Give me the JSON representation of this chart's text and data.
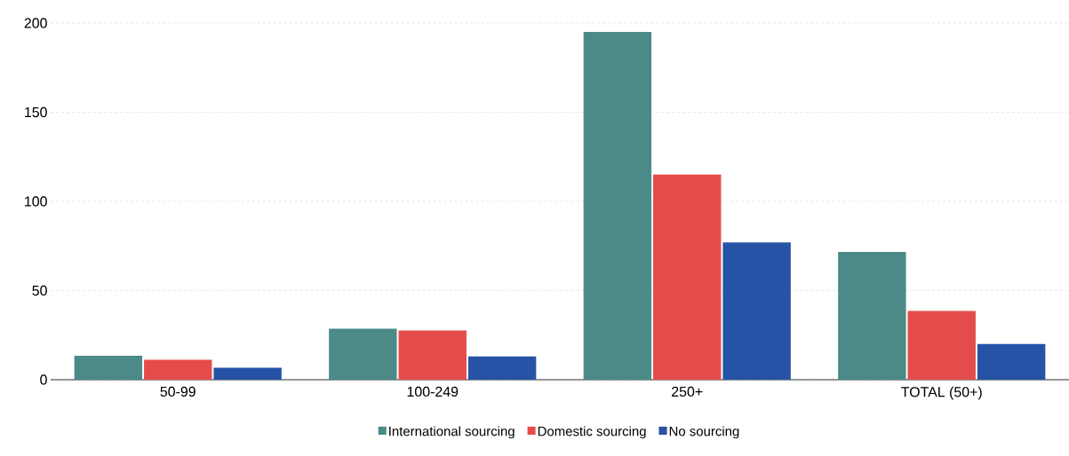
{
  "chart_data": {
    "type": "bar",
    "categories": [
      "50-99",
      "100-249",
      "250+",
      "TOTAL (50+)"
    ],
    "series": [
      {
        "name": "International sourcing",
        "color": "#4b8a87",
        "values": [
          13.4,
          28.6,
          195,
          71.6
        ]
      },
      {
        "name": "Domestic sourcing",
        "color": "#e44c4b",
        "values": [
          11.2,
          27.6,
          115,
          38.5
        ]
      },
      {
        "name": "No sourcing",
        "color": "#2653a6",
        "values": [
          6.7,
          13,
          77,
          20
        ]
      }
    ],
    "ylim": [
      0,
      200
    ],
    "yticks": [
      0,
      50,
      100,
      150,
      200
    ],
    "grid": "y",
    "legend": "bottom"
  }
}
